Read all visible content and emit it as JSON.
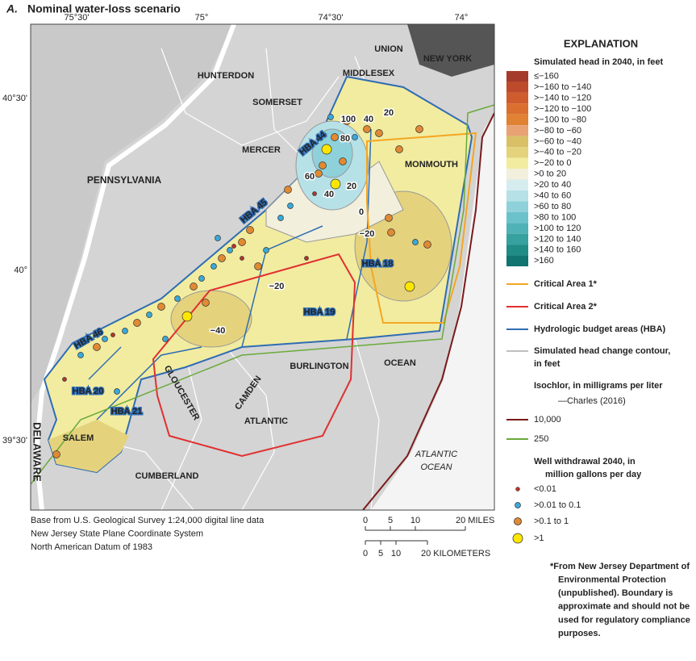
{
  "header": {
    "panel": "A.",
    "title": "Nominal water-loss scenario"
  },
  "map": {
    "longitude_labels": [
      "75°30'",
      "75°",
      "74°30'",
      "74°"
    ],
    "latitude_labels": [
      "40°30'",
      "40°",
      "39°30'"
    ],
    "place_labels": [
      "HUNTERDON",
      "SOMERSET",
      "MIDDLESEX",
      "UNION",
      "NEW YORK",
      "MERCER",
      "MONMOUTH",
      "PENNSYLVANIA",
      "BURLINGTON",
      "OCEAN",
      "GLOUCESTER",
      "CAMDEN",
      "ATLANTIC",
      "SALEM",
      "CUMBERLAND",
      "DELAWARE",
      "ATLANTIC",
      "OCEAN"
    ],
    "hba_labels": [
      "HBA 44",
      "HBA 45",
      "HBA 46",
      "HBA 18",
      "HBA 19",
      "HBA 20",
      "HBA 21"
    ],
    "contour_labels": [
      "100",
      "80",
      "60",
      "40",
      "20",
      "40",
      "20",
      "0",
      "−20",
      "−20",
      "−40"
    ]
  },
  "legend": {
    "heading": "EXPLANATION",
    "head_title": "Simulated head in 2040, in feet",
    "head_classes": [
      {
        "label": "≤−160",
        "color": "#a53b2a"
      },
      {
        "label": ">−160 to −140",
        "color": "#bd4a2b"
      },
      {
        "label": ">−140 to −120",
        "color": "#cf5c2d"
      },
      {
        "label": ">−120 to −100",
        "color": "#da6f2f"
      },
      {
        "label": ">−100 to −80",
        "color": "#e08232"
      },
      {
        "label": ">−80 to −60",
        "color": "#e8a274"
      },
      {
        "label": ">−60 to −40",
        "color": "#d9c067"
      },
      {
        "label": ">−40 to −20",
        "color": "#e5d27c"
      },
      {
        "label": ">−20 to 0",
        "color": "#f2eca0"
      },
      {
        "label": ">0 to 20",
        "color": "#f2efdc"
      },
      {
        "label": ">20 to 40",
        "color": "#d6edf0"
      },
      {
        "label": ">40 to 60",
        "color": "#b6e1e7"
      },
      {
        "label": ">60 to 80",
        "color": "#8fd1da"
      },
      {
        "label": ">80 to 100",
        "color": "#6bc2cb"
      },
      {
        "label": ">100 to 120",
        "color": "#4fb2b7"
      },
      {
        "label": ">120 to 140",
        "color": "#36a19e"
      },
      {
        "label": ">140 to 160",
        "color": "#1f8c86"
      },
      {
        "label": ">160",
        "color": "#107470"
      }
    ],
    "critical_area_1": "Critical Area 1*",
    "critical_area_2": "Critical Area 2*",
    "hba": "Hydrologic budget areas (HBA)",
    "contour": [
      "Simulated head change contour,",
      "in feet"
    ],
    "isochlor": [
      "Isochlor, in milligrams per liter",
      "—Charles (2016)"
    ],
    "isochlor_10000": "10,000",
    "isochlor_250": "250",
    "wells_title": [
      "Well withdrawal 2040, in",
      "million gallons per day"
    ],
    "wells": [
      "<0.01",
      ">0.01 to 0.1",
      ">0.1 to 1",
      ">1"
    ],
    "footnote": [
      "*From New Jersey Department of",
      "Environmental Protection",
      "(unpublished). Boundary is",
      "approximate and should not be",
      "used for regulatory compliance",
      "purposes."
    ]
  },
  "credits": [
    "Base from U.S. Geological Survey 1:24,000 digital line data",
    "New Jersey State Plane Coordinate System",
    "North American Datum of 1983"
  ],
  "scale_bar": {
    "miles": [
      "0",
      "5",
      "10",
      "20 MILES"
    ],
    "kilometers": [
      "0",
      "5",
      "10",
      "20 KILOMETERS"
    ]
  }
}
